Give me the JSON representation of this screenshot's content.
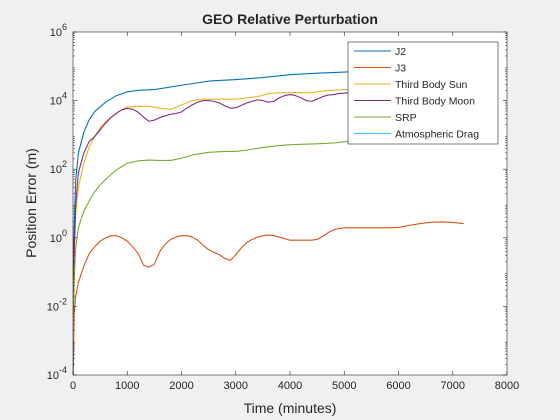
{
  "chart_data": {
    "type": "line",
    "title": "GEO Relative Perturbation",
    "xlabel": "Time (minutes)",
    "ylabel": "Position Error (m)",
    "xlim": [
      0,
      8000
    ],
    "ylim": [
      0.0001,
      1000000
    ],
    "yscale": "log",
    "xticks": [
      0,
      1000,
      2000,
      3000,
      4000,
      5000,
      6000,
      7000,
      8000
    ],
    "yticks": [
      {
        "value": 0.0001,
        "base": "10",
        "exp": "-4"
      },
      {
        "value": 0.01,
        "base": "10",
        "exp": "-2"
      },
      {
        "value": 1,
        "base": "10",
        "exp": "0"
      },
      {
        "value": 100,
        "base": "10",
        "exp": "2"
      },
      {
        "value": 10000,
        "base": "10",
        "exp": "4"
      },
      {
        "value": 1000000,
        "base": "10",
        "exp": "6"
      }
    ],
    "grid": false,
    "legend_position": "top-right",
    "series": [
      {
        "name": "J2",
        "color": "#0072BD",
        "x": [
          0,
          10,
          50,
          100,
          200,
          300,
          400,
          600,
          800,
          1000,
          1200,
          1500,
          2000,
          2500,
          3000,
          3500,
          4000,
          4500,
          5000,
          5500,
          6000,
          6500,
          7000,
          7200
        ],
        "y": [
          0.001,
          0.5,
          50,
          300,
          1200,
          2800,
          4800,
          9000,
          14000,
          18000,
          20000,
          21000,
          28000,
          37000,
          41000,
          47000,
          57000,
          63000,
          68000,
          73000,
          81000,
          88000,
          96000,
          100000
        ]
      },
      {
        "name": "J3",
        "color": "#D95319",
        "x": [
          0,
          20,
          50,
          100,
          200,
          300,
          400,
          500,
          600,
          700,
          800,
          900,
          1000,
          1100,
          1200,
          1300,
          1400,
          1500,
          1600,
          1700,
          1800,
          1900,
          2000,
          2100,
          2200,
          2300,
          2400,
          2500,
          2600,
          2700,
          2800,
          2900,
          3000,
          3100,
          3200,
          3300,
          3400,
          3500,
          3600,
          3700,
          3800,
          3900,
          4000,
          4100,
          4200,
          4300,
          4400,
          4500,
          4600,
          4700,
          4800,
          4900,
          5000,
          5200,
          5400,
          5600,
          5800,
          6000,
          6200,
          6400,
          6600,
          6800,
          7000,
          7200
        ],
        "y": [
          2e-05,
          0.006,
          0.02,
          0.05,
          0.15,
          0.35,
          0.55,
          0.8,
          1.0,
          1.15,
          1.15,
          1.0,
          0.8,
          0.55,
          0.35,
          0.16,
          0.14,
          0.17,
          0.4,
          0.65,
          0.9,
          1.05,
          1.15,
          1.15,
          1.05,
          0.85,
          0.6,
          0.45,
          0.38,
          0.32,
          0.25,
          0.22,
          0.32,
          0.5,
          0.72,
          0.9,
          1.05,
          1.15,
          1.2,
          1.15,
          1.05,
          0.95,
          0.85,
          0.85,
          0.85,
          0.85,
          0.85,
          0.9,
          1.1,
          1.4,
          1.7,
          1.85,
          1.95,
          1.95,
          1.95,
          1.95,
          1.95,
          2.0,
          2.3,
          2.6,
          2.85,
          2.9,
          2.8,
          2.6
        ]
      },
      {
        "name": "Third Body Sun",
        "color": "#EDB120",
        "x": [
          0,
          20,
          50,
          100,
          200,
          300,
          400,
          500,
          600,
          700,
          800,
          900,
          1000,
          1200,
          1400,
          1600,
          1800,
          2000,
          2200,
          2400,
          2600,
          2800,
          3000,
          3200,
          3400,
          3600,
          3800,
          4000,
          4200,
          4400,
          4600,
          4800,
          5000,
          5100
        ],
        "y": [
          0.001,
          0.2,
          5,
          30,
          150,
          450,
          900,
          1600,
          2400,
          3300,
          4300,
          5400,
          6500,
          6800,
          6800,
          6000,
          5500,
          7500,
          10000,
          11000,
          11000,
          11000,
          11000,
          12000,
          13000,
          16000,
          17000,
          17000,
          17000,
          17000,
          19000,
          20000,
          21000,
          21000
        ]
      },
      {
        "name": "Third Body Moon",
        "color": "#7E2F8E",
        "x": [
          0,
          20,
          50,
          100,
          200,
          300,
          400,
          500,
          600,
          700,
          800,
          900,
          1000,
          1100,
          1200,
          1300,
          1400,
          1500,
          1600,
          1700,
          1800,
          1900,
          2000,
          2100,
          2200,
          2300,
          2400,
          2500,
          2600,
          2700,
          2800,
          2900,
          3000,
          3100,
          3200,
          3300,
          3400,
          3500,
          3600,
          3700,
          3800,
          3900,
          4000,
          4100,
          4200,
          4300,
          4400,
          4500,
          4600,
          4700,
          4800,
          4900,
          5000,
          5100
        ],
        "y": [
          0.001,
          0.3,
          10,
          80,
          300,
          650,
          900,
          1400,
          2200,
          3200,
          4300,
          5400,
          5900,
          5600,
          4600,
          3300,
          2500,
          2700,
          3200,
          3600,
          4000,
          4200,
          4700,
          6000,
          7500,
          9000,
          10000,
          10000,
          9500,
          8500,
          7000,
          6000,
          6200,
          7200,
          8500,
          9500,
          10500,
          10000,
          9000,
          9500,
          12000,
          14000,
          15000,
          14000,
          12000,
          10000,
          9500,
          11000,
          13000,
          14500,
          15000,
          16000,
          16500,
          17000
        ]
      },
      {
        "name": "SRP",
        "color": "#77AC30",
        "x": [
          0,
          20,
          50,
          100,
          200,
          300,
          400,
          500,
          600,
          700,
          800,
          900,
          1000,
          1200,
          1400,
          1600,
          1800,
          2000,
          2200,
          2500,
          2800,
          3000,
          3200,
          3500,
          3800,
          4000,
          4200,
          4500,
          4800,
          5000,
          5100
        ],
        "y": [
          0.0005,
          0.05,
          0.5,
          2,
          6,
          12,
          22,
          35,
          50,
          70,
          95,
          120,
          150,
          175,
          185,
          180,
          180,
          210,
          260,
          310,
          330,
          330,
          360,
          430,
          490,
          520,
          530,
          550,
          580,
          630,
          650
        ]
      },
      {
        "name": "Atmospheric Drag",
        "color": "#4DBEEE",
        "x": [],
        "y": []
      }
    ]
  }
}
